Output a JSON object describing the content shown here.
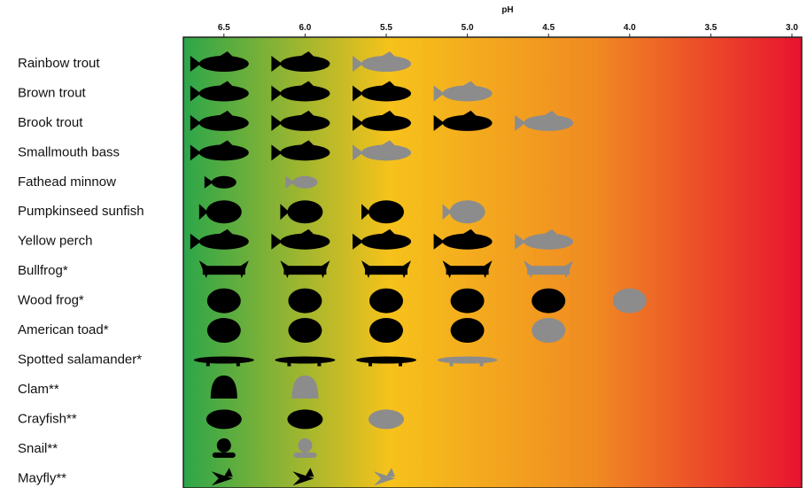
{
  "chart_data": {
    "type": "tolerance",
    "xlabel": "pH",
    "xlim": [
      6.75,
      2.94
    ],
    "xticks": [
      {
        "value": 6.5,
        "label": "6.5"
      },
      {
        "value": 6.0,
        "label": "6.0"
      },
      {
        "value": 5.5,
        "label": "5.5"
      },
      {
        "value": 5.0,
        "label": "5.0"
      },
      {
        "value": 4.5,
        "label": "4.5"
      },
      {
        "value": 4.0,
        "label": "4.0"
      },
      {
        "value": 3.5,
        "label": "3.5"
      },
      {
        "value": 3.0,
        "label": "3.0"
      }
    ],
    "tolerant_color": "#000000",
    "marginal_color": "#8c8c8c",
    "gradient": [
      "#2ca64a",
      "#f6c21b",
      "#f08a22",
      "#e8132f"
    ],
    "rows": [
      {
        "label": "Rainbow trout",
        "ph": [
          6.5,
          6.0
        ],
        "marginal_ph": 5.5
      },
      {
        "label": "Brown trout",
        "ph": [
          6.5,
          6.0,
          5.5
        ],
        "marginal_ph": 5.0
      },
      {
        "label": "Brook trout",
        "ph": [
          6.5,
          6.0,
          5.5,
          5.0
        ],
        "marginal_ph": 4.5
      },
      {
        "label": "Smallmouth bass",
        "ph": [
          6.5,
          6.0
        ],
        "marginal_ph": 5.5
      },
      {
        "label": "Fathead minnow",
        "ph": [
          6.5
        ],
        "marginal_ph": 6.0
      },
      {
        "label": "Pumpkinseed sunfish",
        "ph": [
          6.5,
          6.0,
          5.5
        ],
        "marginal_ph": 5.0
      },
      {
        "label": "Yellow perch",
        "ph": [
          6.5,
          6.0,
          5.5,
          5.0
        ],
        "marginal_ph": 4.5
      },
      {
        "label": "Bullfrog*",
        "ph": [
          6.5,
          6.0,
          5.5,
          5.0
        ],
        "marginal_ph": 4.5
      },
      {
        "label": "Wood frog*",
        "ph": [
          6.5,
          6.0,
          5.5,
          5.0,
          4.5
        ],
        "marginal_ph": 4.0
      },
      {
        "label": "American toad*",
        "ph": [
          6.5,
          6.0,
          5.5,
          5.0
        ],
        "marginal_ph": 4.5
      },
      {
        "label": "Spotted salamander*",
        "ph": [
          6.5,
          6.0,
          5.5
        ],
        "marginal_ph": 5.0
      },
      {
        "label": "Clam**",
        "ph": [
          6.5
        ],
        "marginal_ph": 6.0
      },
      {
        "label": "Crayfish**",
        "ph": [
          6.5,
          6.0
        ],
        "marginal_ph": 5.5
      },
      {
        "label": "Snail**",
        "ph": [
          6.5
        ],
        "marginal_ph": 6.0
      },
      {
        "label": "Mayfly**",
        "ph": [
          6.5,
          6.0
        ],
        "marginal_ph": 5.5
      }
    ]
  }
}
